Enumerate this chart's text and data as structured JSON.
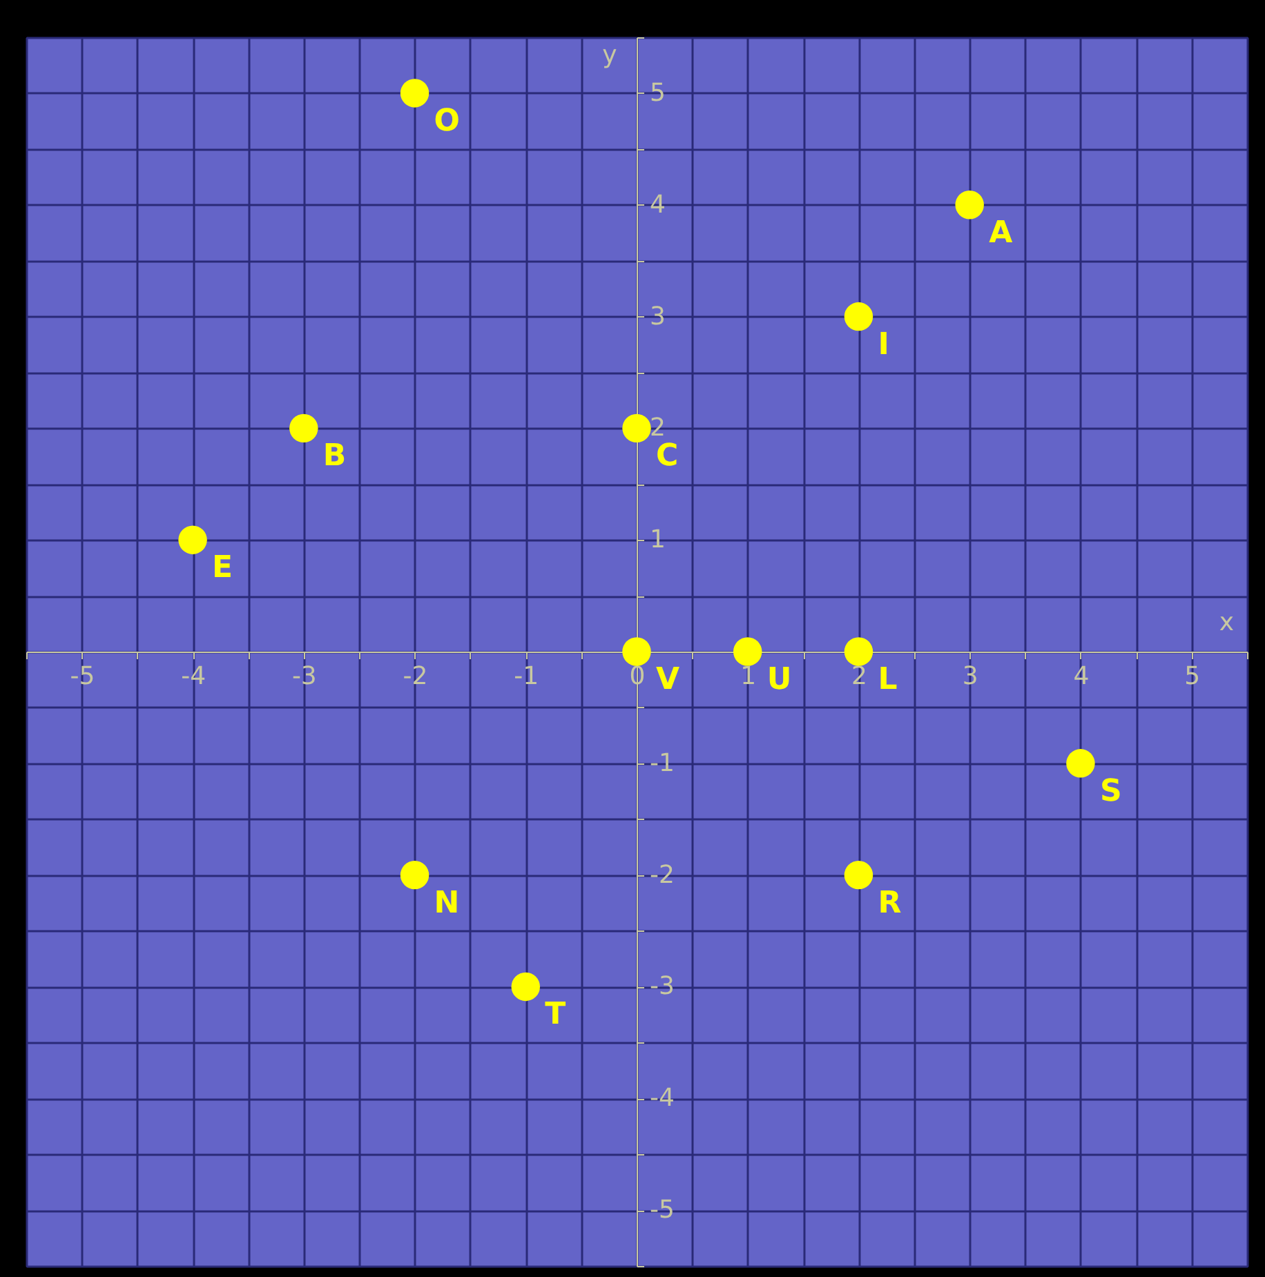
{
  "chart_data": {
    "type": "scatter",
    "xlabel": "x",
    "ylabel": "y",
    "xlim": [
      -5.5,
      5.5
    ],
    "ylim": [
      -5.5,
      5.5
    ],
    "xticks": [
      {
        "value": -5.5,
        "label": null
      },
      -5,
      {
        "value": -4.5,
        "label": null
      },
      -4,
      {
        "value": -3.5,
        "label": null
      },
      -3,
      {
        "value": -2.5,
        "label": null
      },
      -2,
      {
        "value": -1.5,
        "label": null
      },
      -1,
      {
        "value": -0.5,
        "label": null
      },
      0,
      {
        "value": 0.5,
        "label": null
      },
      1,
      {
        "value": 1.5,
        "label": null
      },
      2,
      {
        "value": 2.5,
        "label": null
      },
      3,
      {
        "value": 3.5,
        "label": null
      },
      4,
      {
        "value": 4.5,
        "label": null
      },
      5,
      {
        "value": 5.5,
        "label": null
      }
    ],
    "yticks": [
      {
        "value": -5.5,
        "label": null
      },
      -5,
      {
        "value": -4.5,
        "label": null
      },
      -4,
      {
        "value": -3.5,
        "label": null
      },
      -3,
      {
        "value": -2.5,
        "label": null
      },
      -2,
      {
        "value": -1.5,
        "label": null
      },
      -1,
      {
        "value": -0.5,
        "label": null
      },
      {
        "value": 0,
        "label": null
      },
      {
        "value": 0.5,
        "label": null
      },
      1,
      {
        "value": 1.5,
        "label": null
      },
      2,
      {
        "value": 2.5,
        "label": null
      },
      3,
      {
        "value": 3.5,
        "label": null
      },
      4,
      {
        "value": 4.5,
        "label": null
      },
      5,
      {
        "value": 5.5,
        "label": null
      }
    ],
    "grid": true,
    "marker": "circle",
    "series": [
      {
        "color": "#ffff00",
        "x": [
          -2,
          3,
          2,
          -3,
          0,
          -4,
          0,
          1,
          2,
          4,
          -2,
          2,
          -1
        ],
        "values": [
          5,
          4,
          3,
          2,
          2,
          1,
          0,
          0,
          0,
          -1,
          -2,
          -2,
          -3
        ],
        "value_labels": [
          "O",
          "A",
          "I",
          "B",
          "C",
          "E",
          "V",
          "U",
          "L",
          "S",
          "N",
          "R",
          "T"
        ]
      }
    ]
  }
}
